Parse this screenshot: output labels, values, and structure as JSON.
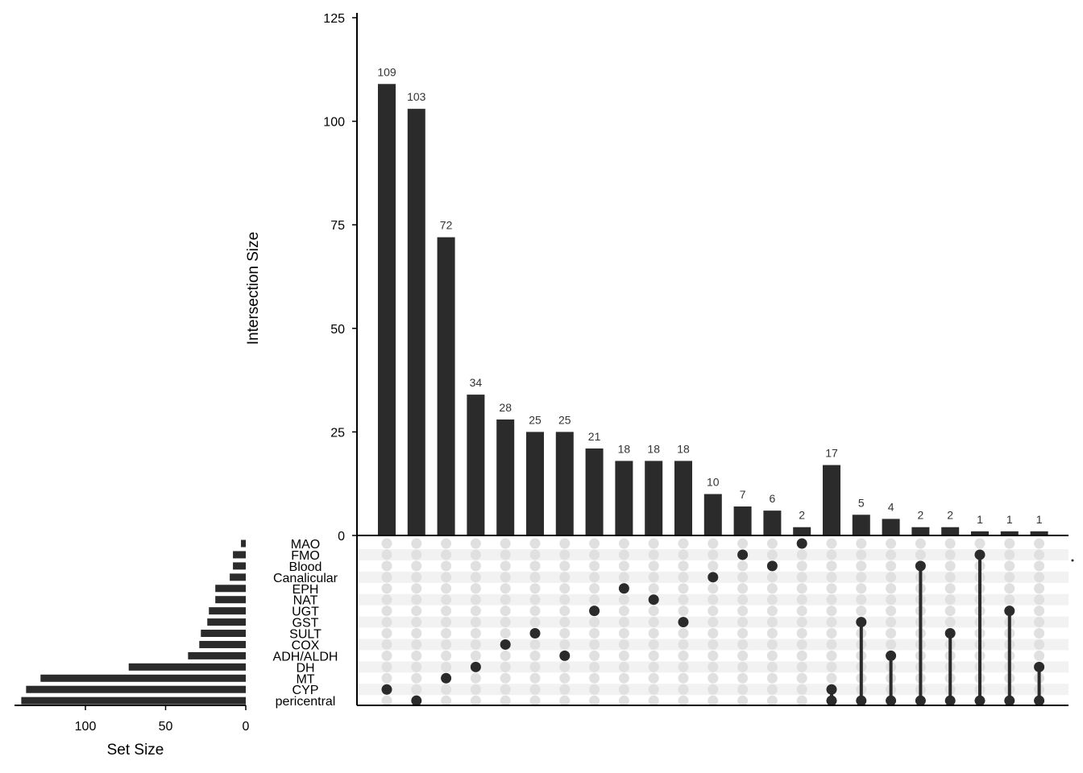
{
  "chart_data": {
    "type": "upset",
    "bar_color": "#2b2b2b",
    "dot_active_color": "#2b2b2b",
    "dot_inactive_color": "#e0e0e0",
    "stripe_color": "#f2f2f2",
    "intersection_axis": {
      "label": "Intersection Size",
      "ylim": [
        0,
        125
      ],
      "ticks": [
        0,
        25,
        50,
        75,
        100,
        125
      ]
    },
    "set_size_axis": {
      "label": "Set Size",
      "xlim": [
        0,
        140
      ],
      "ticks": [
        0,
        50,
        100
      ],
      "tick_labels": [
        "0",
        "50",
        "100"
      ]
    },
    "sets": [
      {
        "name": "MAO",
        "size": 3
      },
      {
        "name": "FMO",
        "size": 8
      },
      {
        "name": "Blood",
        "size": 8
      },
      {
        "name": "Canalicular",
        "size": 10
      },
      {
        "name": "EPH",
        "size": 19
      },
      {
        "name": "NAT",
        "size": 19
      },
      {
        "name": "UGT",
        "size": 23
      },
      {
        "name": "GST",
        "size": 24
      },
      {
        "name": "SULT",
        "size": 28
      },
      {
        "name": "COX",
        "size": 29
      },
      {
        "name": "ADH/ALDH",
        "size": 36
      },
      {
        "name": "DH",
        "size": 73
      },
      {
        "name": "MT",
        "size": 128
      },
      {
        "name": "CYP",
        "size": 137
      },
      {
        "name": "pericentral",
        "size": 140
      }
    ],
    "intersections": [
      {
        "value": 109,
        "label": "109",
        "sets": [
          "CYP"
        ]
      },
      {
        "value": 103,
        "label": "103",
        "sets": [
          "pericentral"
        ]
      },
      {
        "value": 72,
        "label": "72",
        "sets": [
          "MT"
        ]
      },
      {
        "value": 34,
        "label": "34",
        "sets": [
          "DH"
        ]
      },
      {
        "value": 28,
        "label": "28",
        "sets": [
          "COX"
        ]
      },
      {
        "value": 25,
        "label": "25",
        "sets": [
          "SULT"
        ]
      },
      {
        "value": 25,
        "label": "25",
        "sets": [
          "ADH/ALDH"
        ]
      },
      {
        "value": 21,
        "label": "21",
        "sets": [
          "UGT"
        ]
      },
      {
        "value": 18,
        "label": "18",
        "sets": [
          "EPH"
        ]
      },
      {
        "value": 18,
        "label": "18",
        "sets": [
          "NAT"
        ]
      },
      {
        "value": 18,
        "label": "18",
        "sets": [
          "GST"
        ]
      },
      {
        "value": 10,
        "label": "10",
        "sets": [
          "Canalicular"
        ]
      },
      {
        "value": 7,
        "label": "7",
        "sets": [
          "FMO"
        ]
      },
      {
        "value": 6,
        "label": "6",
        "sets": [
          "Blood"
        ]
      },
      {
        "value": 2,
        "label": "2",
        "sets": [
          "MAO"
        ]
      },
      {
        "value": 17,
        "label": "17",
        "sets": [
          "CYP",
          "pericentral"
        ]
      },
      {
        "value": 5,
        "label": "5",
        "sets": [
          "GST",
          "pericentral"
        ]
      },
      {
        "value": 4,
        "label": "4",
        "sets": [
          "ADH/ALDH",
          "pericentral"
        ]
      },
      {
        "value": 2,
        "label": "2",
        "sets": [
          "Blood",
          "pericentral"
        ]
      },
      {
        "value": 2,
        "label": "2",
        "sets": [
          "SULT",
          "pericentral"
        ]
      },
      {
        "value": 1,
        "label": "1",
        "sets": [
          "FMO",
          "pericentral"
        ]
      },
      {
        "value": 1,
        "label": "1",
        "sets": [
          "UGT",
          "pericentral"
        ]
      },
      {
        "value": 1,
        "label": "1",
        "sets": [
          "DH",
          "pericentral"
        ]
      }
    ]
  }
}
